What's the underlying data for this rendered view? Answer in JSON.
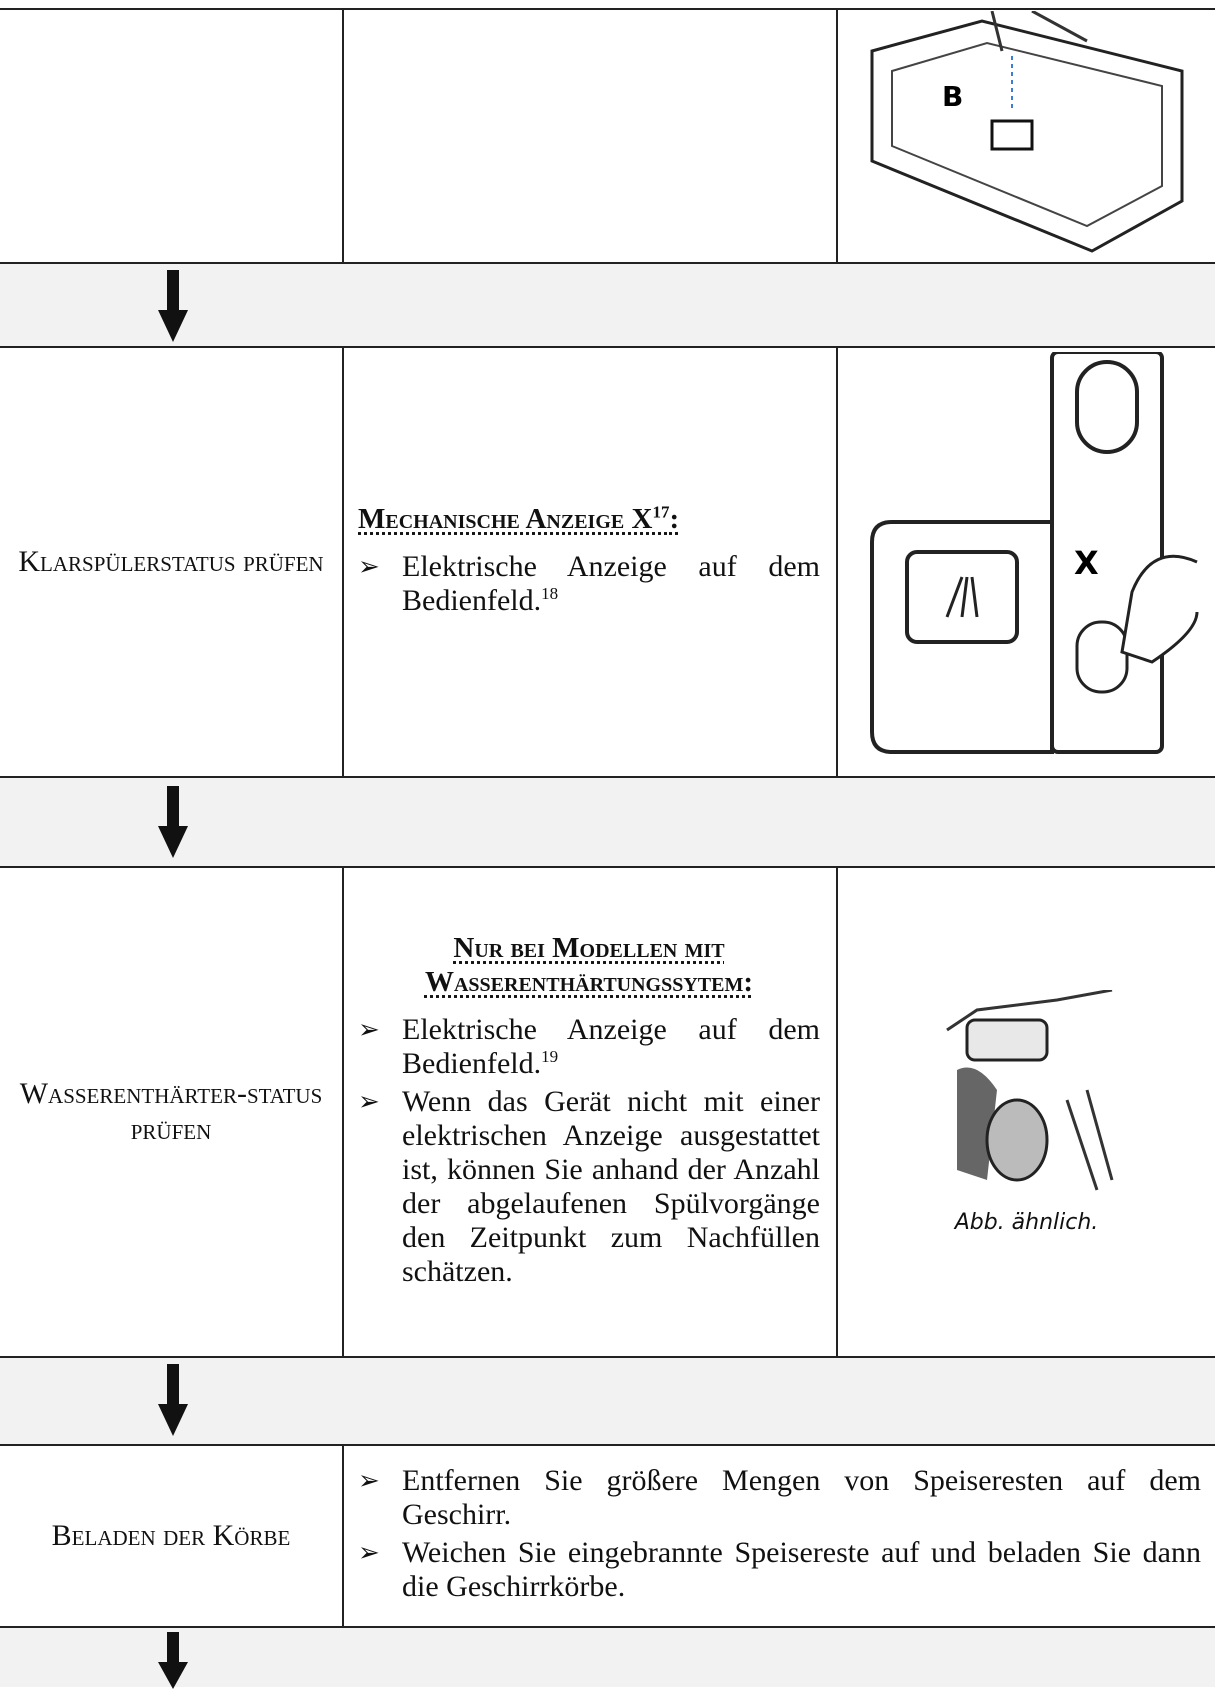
{
  "steps": [
    {
      "label": "Klarspülerstatus prüfen",
      "heading": "Mechanische Anzeige X",
      "heading_note": "17",
      "heading_end": ":",
      "bullets": [
        {
          "text": "Elektrische Anzeige auf dem Bedienfeld.",
          "note": "18"
        }
      ]
    },
    {
      "label": "Wasserenthärter-status prüfen",
      "heading": "Nur bei Modellen mit Wasserenthärtungssytem:",
      "bullets": [
        {
          "text": "Elektrische Anzeige auf dem Bedienfeld.",
          "note": "19"
        },
        {
          "text": "Wenn das Gerät nicht mit einer elektrischen Anzeige ausgestattet ist, können Sie anhand der Anzahl der abgelaufenen Spülvorgänge den Zeitpunkt zum Nachfüllen schätzen."
        }
      ],
      "caption": "Abb. ähnlich."
    },
    {
      "label": "Beladen der Körbe",
      "bullets": [
        {
          "text": "Entfernen Sie größere Mengen von Speiseresten auf dem Geschirr."
        },
        {
          "text": "Weichen Sie eingebrannte Speisereste auf und beladen Sie dann die Geschirrkörbe."
        }
      ]
    }
  ]
}
